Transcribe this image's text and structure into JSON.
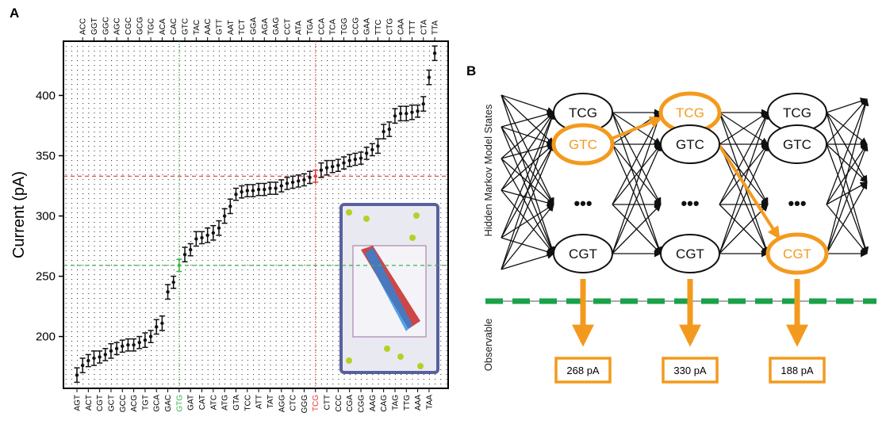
{
  "chart_data": {
    "type": "errorbar",
    "panel_label": "A",
    "ylabel": "Current (pA)",
    "categories": [
      "AGT",
      "ACC",
      "ACT",
      "GGT",
      "CGT",
      "GGC",
      "GCT",
      "AGC",
      "GCC",
      "CGC",
      "ACG",
      "GCG",
      "TGT",
      "TGC",
      "GCA",
      "ACA",
      "GAC",
      "CAC",
      "GTG",
      "GTC",
      "GAT",
      "TAC",
      "CAT",
      "AAC",
      "ATC",
      "GTT",
      "ATG",
      "AAT",
      "GTA",
      "TCT",
      "TCC",
      "GGA",
      "ATT",
      "AGA",
      "TAT",
      "GAG",
      "AGG",
      "CCT",
      "CTC",
      "ATA",
      "GGG",
      "TGA",
      "TCG",
      "CCA",
      "CTT",
      "TCA",
      "CCC",
      "TGG",
      "CGA",
      "CCG",
      "CGG",
      "GAA",
      "AAG",
      "TTC",
      "CAG",
      "CTG",
      "TAG",
      "CAA",
      "TTG",
      "TTT",
      "AAA",
      "CTA",
      "TAA",
      "TTA"
    ],
    "values": [
      168,
      176,
      180,
      182,
      183,
      185,
      188,
      190,
      192,
      193,
      193,
      195,
      197,
      200,
      208,
      211,
      237,
      245,
      259,
      268,
      272,
      281,
      282,
      284,
      286,
      290,
      300,
      308,
      318,
      320,
      321,
      321,
      322,
      322,
      323,
      323,
      325,
      327,
      328,
      329,
      330,
      332,
      333,
      338,
      340,
      341,
      342,
      344,
      346,
      347,
      348,
      352,
      355,
      358,
      370,
      372,
      383,
      385,
      385,
      386,
      387,
      393,
      415,
      435
    ],
    "errors": [
      6,
      6,
      5,
      6,
      5,
      5,
      6,
      5,
      5,
      5,
      5,
      5,
      6,
      5,
      6,
      6,
      6,
      5,
      5,
      6,
      5,
      6,
      5,
      6,
      6,
      6,
      6,
      6,
      5,
      5,
      5,
      5,
      5,
      5,
      5,
      5,
      5,
      5,
      5,
      5,
      5,
      5,
      5,
      6,
      6,
      5,
      5,
      5,
      5,
      5,
      5,
      5,
      5,
      6,
      6,
      6,
      6,
      6,
      6,
      6,
      5,
      6,
      6,
      6
    ],
    "color": "#111111",
    "highlights": [
      {
        "index": 18,
        "color": "#3cb34a"
      },
      {
        "index": 42,
        "color": "#e53935"
      }
    ],
    "ylim": [
      157,
      445
    ],
    "yticks": [
      200,
      250,
      300,
      350,
      400
    ],
    "grid": true
  },
  "diagram": {
    "panel_label": "B",
    "states_label": "Hidden Markov Model States",
    "observable_label": "Observable",
    "columns": [
      {
        "nodes": [
          "TCG",
          "GTC",
          "•••",
          "CGT"
        ],
        "observation": "268 pA"
      },
      {
        "nodes": [
          "TCG",
          "GTC",
          "•••",
          "CGT"
        ],
        "observation": "330 pA"
      },
      {
        "nodes": [
          "TCG",
          "GTC",
          "•••",
          "CGT"
        ],
        "observation": "188 pA"
      }
    ]
  }
}
